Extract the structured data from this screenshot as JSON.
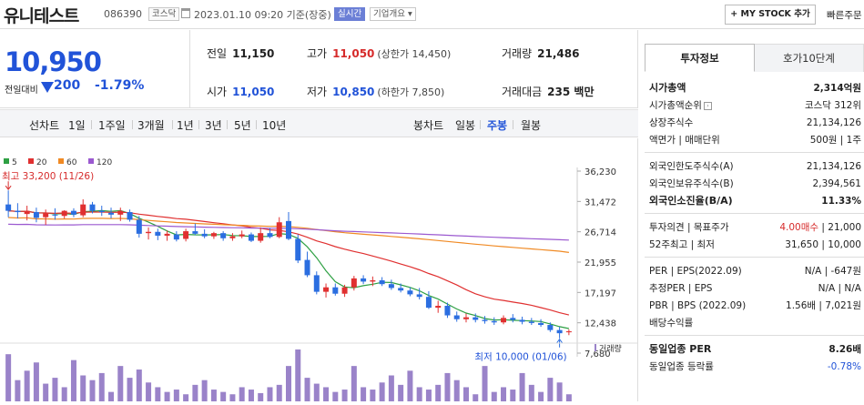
{
  "header": {
    "name": "유니테스트",
    "code": "086390",
    "market_tag": "코스닥",
    "datetime": "2023.01.10 09:20  기준(장중)",
    "realtime_tag": "실시간",
    "overview_tag": "기업개요 ▾",
    "mystock_button": "+ MY STOCK 추가",
    "quick_order": "빠른주문"
  },
  "price": {
    "current": "10,950",
    "change_label": "전일대비",
    "change": "200",
    "change_pct": "-1.79%"
  },
  "stats": {
    "prev_close_label": "전일",
    "prev_close": "11,150",
    "high_label": "고가",
    "high": "11,050",
    "high_sub": "(상한가 14,450)",
    "volume_label": "거래량",
    "volume": "21,486",
    "open_label": "시가",
    "open": "11,050",
    "low_label": "저가",
    "low": "10,850",
    "low_sub": "(하한가 7,850)",
    "amount_label": "거래대금",
    "amount": "235 백만"
  },
  "range_bar": {
    "line_chart": "선차트",
    "ranges": [
      "1일",
      "1주일",
      "3개월",
      "1년",
      "3년",
      "5년",
      "10년"
    ],
    "candle_chart": "봉차트",
    "candles": [
      "일봉",
      "주봉",
      "월봉"
    ],
    "active_candle": "주봉"
  },
  "chart_data": {
    "type": "candlestick",
    "legend": [
      {
        "name": "5",
        "color": "#2ea043"
      },
      {
        "name": "20",
        "color": "#e03030"
      },
      {
        "name": "60",
        "color": "#f08a24"
      },
      {
        "name": "120",
        "color": "#9b59d0"
      }
    ],
    "y_ticks": [
      "36,230",
      "31,472",
      "26,714",
      "21,955",
      "17,197",
      "12,438",
      "7,680"
    ],
    "ylim": [
      7680,
      36230
    ],
    "high_marker": "최고 33,200 (11/26)",
    "low_marker": "최저 10,000 (01/06)",
    "volume_label": "거래량",
    "candles": [
      [
        31000,
        33200,
        29000,
        30000
      ],
      [
        30000,
        31200,
        28800,
        29800
      ],
      [
        29500,
        30800,
        28500,
        30000
      ],
      [
        29800,
        30500,
        28200,
        28900
      ],
      [
        29000,
        30200,
        27800,
        29600
      ],
      [
        29400,
        30400,
        28600,
        29300
      ],
      [
        29200,
        30100,
        28800,
        30000
      ],
      [
        30000,
        30400,
        29000,
        29400
      ],
      [
        29300,
        31800,
        29000,
        31000
      ],
      [
        31000,
        31400,
        29600,
        30000
      ],
      [
        30000,
        30800,
        29200,
        29800
      ],
      [
        29700,
        30500,
        28800,
        29400
      ],
      [
        29400,
        30500,
        28400,
        30000
      ],
      [
        29800,
        30200,
        28300,
        28600
      ],
      [
        28600,
        29200,
        25800,
        26400
      ],
      [
        26500,
        27400,
        25500,
        26700
      ],
      [
        26700,
        27200,
        25400,
        26100
      ],
      [
        26100,
        26900,
        25300,
        26400
      ],
      [
        26300,
        26800,
        25200,
        25500
      ],
      [
        25600,
        27200,
        25200,
        26800
      ],
      [
        26800,
        28000,
        26200,
        26400
      ],
      [
        26400,
        27100,
        25700,
        26000
      ],
      [
        26000,
        26700,
        25600,
        26500
      ],
      [
        26500,
        26800,
        25300,
        25700
      ],
      [
        25700,
        26500,
        25300,
        26000
      ],
      [
        26000,
        26900,
        25700,
        26300
      ],
      [
        26300,
        26600,
        25100,
        25300
      ],
      [
        25300,
        27400,
        25000,
        26500
      ],
      [
        26500,
        27300,
        25700,
        25900
      ],
      [
        25900,
        29000,
        25700,
        28200
      ],
      [
        28400,
        29800,
        25400,
        25600
      ],
      [
        25600,
        26300,
        21800,
        22200
      ],
      [
        22300,
        23600,
        19600,
        19900
      ],
      [
        19900,
        20500,
        16900,
        17300
      ],
      [
        17300,
        18600,
        16400,
        18000
      ],
      [
        18000,
        18600,
        16700,
        17000
      ],
      [
        17000,
        18400,
        16500,
        18000
      ],
      [
        18000,
        19800,
        17500,
        19400
      ],
      [
        19400,
        19900,
        18500,
        18900
      ],
      [
        18900,
        19700,
        18200,
        19100
      ],
      [
        19100,
        19600,
        18200,
        18500
      ],
      [
        18500,
        19200,
        17600,
        17900
      ],
      [
        17900,
        18600,
        17200,
        17500
      ],
      [
        17500,
        18000,
        16600,
        16900
      ],
      [
        16900,
        17900,
        16100,
        16500
      ],
      [
        16500,
        17400,
        14600,
        14800
      ],
      [
        14800,
        15900,
        14000,
        15100
      ],
      [
        15100,
        15600,
        13200,
        13600
      ],
      [
        13600,
        14200,
        12600,
        13000
      ],
      [
        13000,
        13900,
        12500,
        13300
      ],
      [
        13300,
        13900,
        12500,
        12900
      ],
      [
        12900,
        13500,
        12300,
        12700
      ],
      [
        12700,
        13300,
        12100,
        12500
      ],
      [
        12500,
        13600,
        12200,
        13200
      ],
      [
        13200,
        13800,
        12500,
        12900
      ],
      [
        12900,
        13400,
        12200,
        12600
      ],
      [
        12600,
        13200,
        12100,
        12400
      ],
      [
        12400,
        13000,
        11800,
        12100
      ],
      [
        12100,
        12500,
        11000,
        11300
      ],
      [
        11300,
        11800,
        10000,
        10800
      ],
      [
        10950,
        11400,
        10500,
        11100
      ]
    ],
    "volumes": [
      40,
      18,
      26,
      33,
      15,
      20,
      12,
      35,
      22,
      18,
      24,
      8,
      30,
      20,
      27,
      16,
      12,
      8,
      10,
      6,
      14,
      18,
      10,
      8,
      6,
      12,
      10,
      7,
      12,
      14,
      30,
      44,
      20,
      15,
      12,
      8,
      10,
      30,
      12,
      10,
      16,
      22,
      14,
      26,
      12,
      10,
      14,
      24,
      18,
      12,
      6,
      30,
      8,
      12,
      10,
      24,
      14,
      8,
      20,
      16,
      6
    ]
  },
  "side": {
    "tab_active": "투자정보",
    "tab_other": "호가10단계",
    "rows1": [
      {
        "k": "시가총액",
        "v": "2,314억원",
        "bold": true
      },
      {
        "k": "시가총액순위",
        "v": "코스닥 312위",
        "info": true
      },
      {
        "k": "상장주식수",
        "v": "21,134,126"
      },
      {
        "k": "액면가 | 매매단위",
        "v": "500원 | 1주"
      }
    ],
    "rows2": [
      {
        "k": "외국인한도주식수(A)",
        "v": "21,134,126"
      },
      {
        "k": "외국인보유주식수(B)",
        "v": "2,394,561"
      },
      {
        "k": "외국인소진율(B/A)",
        "v": "11.33%",
        "bold": true
      }
    ],
    "rows3": [
      {
        "k": "투자의견 | 목표주가",
        "v1": "4.00매수",
        "v2": "| 21,000"
      },
      {
        "k": "52주최고 | 최저",
        "v": "31,650 | 10,000"
      }
    ],
    "rows4": [
      {
        "k": "PER | EPS(2022.09)",
        "v": "N/A | -647원"
      },
      {
        "k": "추정PER | EPS",
        "v": "N/A | N/A"
      },
      {
        "k": "PBR | BPS (2022.09)",
        "v": "1.56배 | 7,021원"
      },
      {
        "k": "배당수익률",
        "v": ""
      }
    ],
    "rows5": [
      {
        "k": "동일업종 PER",
        "v": "8.26배",
        "bold": true
      },
      {
        "k": "동일업종 등락률",
        "v": "-0.78%",
        "blue": true
      }
    ]
  }
}
